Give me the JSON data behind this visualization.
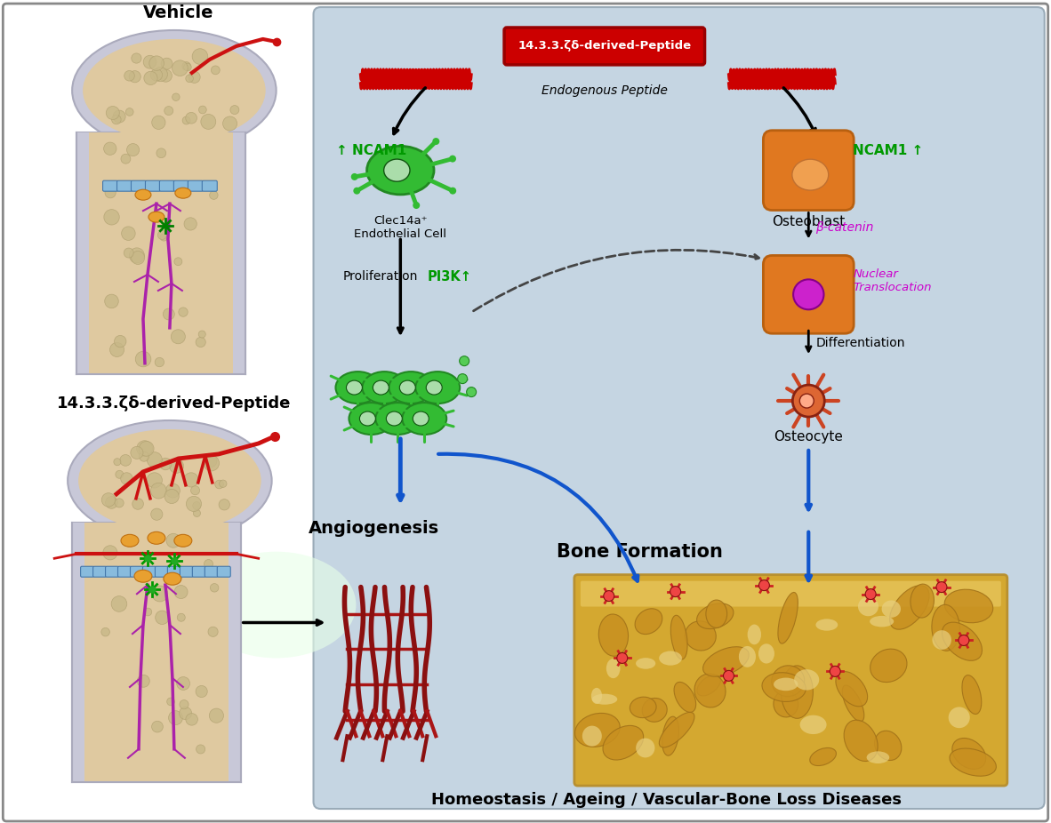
{
  "bg_color": "#ffffff",
  "right_panel_bg_top": "#d0dce8",
  "right_panel_bg_bot": "#b8ccd8",
  "vehicle_label": "Vehicle",
  "peptide_label": "14.3.3.ζδ-derived-Peptide",
  "peptide_box_text": "14.3.3.ζδ-derived-Peptide",
  "endogenous_text": "Endogenous Peptide",
  "ncam1_left": "↑ NCAM1",
  "ncam1_right": "NCAM1 ↑",
  "clec14a_text": "Clec14a⁺\nEndothelial Cell",
  "osteoblast_text": "Osteoblast",
  "beta_catenin_text": "β-catenin",
  "nuclear_text": "Nuclear\nTranslocation",
  "differentiation_text": "Differentiation",
  "osteocyte_text": "Osteocyte",
  "proliferation_text": "Proliferation",
  "pi3k_text": "PI3K↑",
  "angiogenesis_text": "Angiogenesis",
  "bone_formation_text": "Bone Formation",
  "bottom_text": "Homeostasis / Ageing / Vascular-Bone Loss Diseases",
  "green_color": "#009900",
  "red_color": "#cc0000",
  "orange_color": "#d97a1a",
  "magenta_color": "#cc00cc",
  "dark_red": "#8b0000",
  "blue_arrow": "#1155cc",
  "vessel_red": "#cc1111",
  "vessel_purple": "#aa22aa",
  "bone_marrow": "#dfc9a0",
  "bone_outer": "#c0c0cc",
  "bone_cortex": "#b8b8cc"
}
